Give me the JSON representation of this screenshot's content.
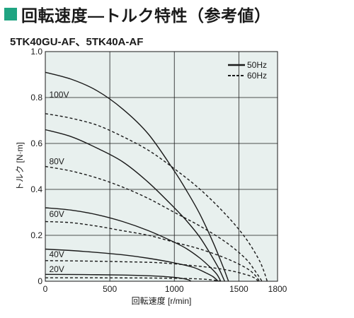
{
  "header": {
    "title": "回転速度—トルク特性（参考値）",
    "subtitle": "5TK40GU-AF、5TK40A-AF"
  },
  "colors": {
    "accent": "#1fa482",
    "plot_background": "#e8f0ee",
    "grid": "#1a1a1a",
    "curve": "#1a1a1a"
  },
  "chart_data": {
    "type": "line",
    "title": "",
    "xlabel": "回転速度 [r/min]",
    "ylabel": "トルク [N·m]",
    "xlim": [
      0,
      1800
    ],
    "ylim": [
      0,
      1.0
    ],
    "xticks": [
      0,
      500,
      1000,
      1500,
      1800
    ],
    "yticks": [
      0,
      0.2,
      0.4,
      0.6,
      0.8,
      1.0
    ],
    "ytick_labels": [
      "0",
      "0.2",
      "0.4",
      "0.6",
      "0.8",
      "1.0"
    ],
    "grid": true,
    "legend_position": "top-right",
    "legend": [
      {
        "label": "50Hz",
        "style": "solid"
      },
      {
        "label": "60Hz",
        "style": "dashed"
      }
    ],
    "series": [
      {
        "voltage": "100V",
        "frequency": "50Hz",
        "x": [
          0,
          200,
          400,
          600,
          800,
          1000,
          1100,
          1200,
          1300,
          1380,
          1420
        ],
        "y": [
          0.91,
          0.88,
          0.83,
          0.75,
          0.64,
          0.48,
          0.39,
          0.29,
          0.17,
          0.06,
          0.0
        ]
      },
      {
        "voltage": "100V",
        "frequency": "60Hz",
        "x": [
          0,
          200,
          400,
          600,
          800,
          1000,
          1200,
          1400,
          1550,
          1650,
          1690,
          1720
        ],
        "y": [
          0.73,
          0.71,
          0.68,
          0.63,
          0.57,
          0.49,
          0.4,
          0.29,
          0.19,
          0.1,
          0.05,
          0.0
        ]
      },
      {
        "voltage": "80V",
        "frequency": "50Hz",
        "x": [
          0,
          200,
          400,
          600,
          800,
          1000,
          1100,
          1200,
          1300,
          1350,
          1390
        ],
        "y": [
          0.66,
          0.63,
          0.58,
          0.52,
          0.43,
          0.32,
          0.26,
          0.19,
          0.1,
          0.05,
          0.0
        ]
      },
      {
        "voltage": "80V",
        "frequency": "60Hz",
        "x": [
          0,
          200,
          400,
          600,
          800,
          1000,
          1200,
          1400,
          1550,
          1620,
          1680
        ],
        "y": [
          0.5,
          0.48,
          0.45,
          0.41,
          0.36,
          0.3,
          0.24,
          0.17,
          0.1,
          0.05,
          0.0
        ]
      },
      {
        "voltage": "60V",
        "frequency": "50Hz",
        "x": [
          0,
          200,
          400,
          600,
          800,
          1000,
          1100,
          1200,
          1280,
          1330,
          1360
        ],
        "y": [
          0.32,
          0.31,
          0.29,
          0.26,
          0.22,
          0.17,
          0.14,
          0.1,
          0.06,
          0.03,
          0.0
        ]
      },
      {
        "voltage": "60V",
        "frequency": "60Hz",
        "x": [
          0,
          200,
          400,
          600,
          800,
          1000,
          1200,
          1400,
          1550,
          1620,
          1660
        ],
        "y": [
          0.26,
          0.255,
          0.24,
          0.22,
          0.2,
          0.17,
          0.14,
          0.1,
          0.06,
          0.03,
          0.0
        ]
      },
      {
        "voltage": "40V",
        "frequency": "50Hz",
        "x": [
          0,
          300,
          600,
          800,
          1000,
          1150,
          1250,
          1300,
          1340
        ],
        "y": [
          0.14,
          0.13,
          0.115,
          0.1,
          0.08,
          0.06,
          0.035,
          0.02,
          0.0
        ]
      },
      {
        "voltage": "40V",
        "frequency": "60Hz",
        "x": [
          0,
          300,
          600,
          900,
          1200,
          1400,
          1550,
          1620,
          1650
        ],
        "y": [
          0.09,
          0.088,
          0.085,
          0.08,
          0.065,
          0.05,
          0.03,
          0.015,
          0.0
        ]
      },
      {
        "voltage": "20V",
        "frequency": "50Hz",
        "x": [
          0,
          300,
          600,
          800,
          1000,
          1100,
          1130
        ],
        "y": [
          0.03,
          0.029,
          0.027,
          0.024,
          0.017,
          0.008,
          0.0
        ]
      },
      {
        "voltage": "20V",
        "frequency": "60Hz",
        "x": [
          0,
          400,
          800,
          1000,
          1200,
          1320,
          1360
        ],
        "y": [
          0.015,
          0.015,
          0.014,
          0.013,
          0.01,
          0.004,
          0.0
        ]
      }
    ],
    "series_labels": [
      {
        "text": "100V",
        "x": 30,
        "y": 0.8
      },
      {
        "text": "80V",
        "x": 30,
        "y": 0.51
      },
      {
        "text": "60V",
        "x": 30,
        "y": 0.28
      },
      {
        "text": "40V",
        "x": 30,
        "y": 0.105
      },
      {
        "text": "20V",
        "x": 30,
        "y": 0.04
      }
    ]
  }
}
